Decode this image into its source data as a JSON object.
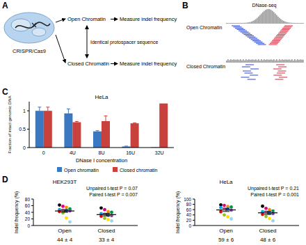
{
  "diagram": {
    "label": "A",
    "cell": "CRISPR/Cas9",
    "states": [
      "Open Chromatin",
      "Closed Chromatin"
    ],
    "outcomes": [
      "Measure indel frequency",
      "Measure indel frequency"
    ],
    "link": "Identical protospacer sequence"
  },
  "tracks": {
    "label": "B",
    "title": "DNase-seq",
    "rows": [
      "Open Chromatin",
      "Closed Chromatin"
    ]
  },
  "chart_data": [
    {
      "panel": "C",
      "type": "bar",
      "title": "HeLa",
      "x_label": "DNase I concentration",
      "y_label": "Fraction of intact genomic DNA",
      "categories": [
        "0",
        "4U",
        "8U",
        "16U",
        "32U"
      ],
      "series": [
        {
          "name": "Open chromatin",
          "color": "#3a78c2",
          "values": [
            1,
            0.93,
            0.44,
            0.03,
            0.01
          ],
          "errors": [
            0.1,
            0.12,
            0.02,
            0.01,
            0
          ]
        },
        {
          "name": "Closed chromatin",
          "color": "#c9413c",
          "values": [
            1,
            0.69,
            0.72,
            0.66,
            1.2
          ],
          "errors": [
            0.1,
            0.02,
            0.14,
            0.01,
            0
          ]
        }
      ],
      "ylim": [
        0,
        1.25
      ],
      "yticks": [
        0,
        0.5,
        1
      ],
      "legend": "bottom",
      "grid": false
    },
    {
      "panel": "D",
      "type": "dot",
      "title": "HEK293T",
      "y_label": "Indel frequency (%)",
      "categories": [
        "Open",
        "Closed"
      ],
      "values": [
        [
          62,
          58,
          55,
          50,
          48,
          47,
          45,
          44,
          42,
          38,
          23,
          11
        ],
        [
          53,
          48,
          42,
          40,
          36,
          34,
          31,
          30,
          28,
          22,
          18,
          14
        ]
      ],
      "colors": [
        "#000000",
        "#e6007e",
        "#f39200",
        "#009640",
        "#00a0e3",
        "#f4a6c8",
        "#1d71b8",
        "#8e44ad",
        "#e30613",
        "#95c11f",
        "#ffde00",
        "#9fd3f0"
      ],
      "means": [
        44,
        33
      ],
      "errors": [
        4,
        4
      ],
      "mean_labels": [
        "44 ± 4",
        "33 ± 4"
      ],
      "annotations": [
        "Unpaired t-test P = 0.07",
        "Paired t-test P = 0.007"
      ],
      "ylim": [
        0,
        80
      ],
      "yticks": [
        0,
        20,
        40,
        60,
        80
      ]
    },
    {
      "type": "dot",
      "title": "HeLa",
      "y_label": "Indel frequency (%)",
      "categories": [
        "Open",
        "Closed"
      ],
      "values": [
        [
          78,
          76,
          72,
          70,
          68,
          65,
          62,
          58,
          52,
          40,
          33,
          25
        ],
        [
          73,
          65,
          60,
          55,
          52,
          50,
          47,
          45,
          42,
          34,
          26,
          18
        ]
      ],
      "colors": [
        "#000000",
        "#e6007e",
        "#f39200",
        "#009640",
        "#00a0e3",
        "#f4a6c8",
        "#1d71b8",
        "#8e44ad",
        "#e30613",
        "#95c11f",
        "#ffde00",
        "#9fd3f0"
      ],
      "means": [
        59,
        48
      ],
      "errors": [
        6,
        6
      ],
      "mean_labels": [
        "59 ± 6",
        "48 ± 6"
      ],
      "annotations": [
        "Unpaired t-test P = 0.21",
        "Paired t-test P = 0.001"
      ],
      "ylim": [
        0,
        100
      ],
      "yticks": [
        0,
        20,
        40,
        60,
        80,
        100
      ]
    }
  ]
}
